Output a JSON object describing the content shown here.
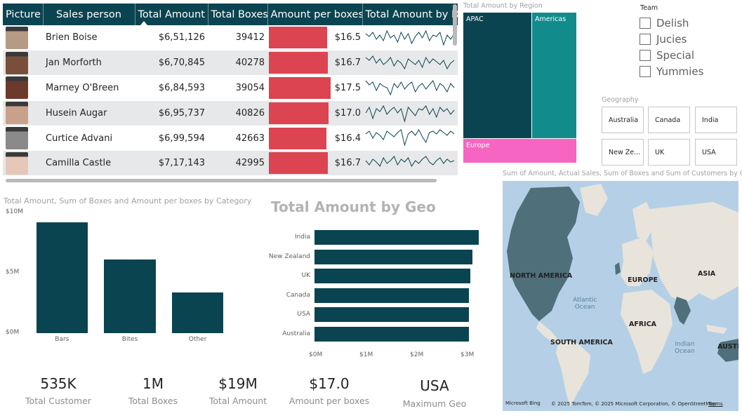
{
  "table": {
    "headers": [
      "Picture",
      "Sales person",
      "Total Amount",
      "Total Boxes",
      "Amount per boxes",
      "Total Amount by Da"
    ],
    "rows": [
      {
        "name": "Brien Boise",
        "amount": "$6,51,126",
        "boxes": "39412",
        "apb": "$16.5",
        "apb_value": 16.5,
        "photo": "#b59a84",
        "spark": [
          22,
          18,
          24,
          14,
          20,
          12,
          26,
          16,
          20,
          10,
          24,
          14,
          22,
          8,
          18,
          24,
          16,
          26,
          12,
          20,
          18,
          24,
          6,
          20,
          14,
          22
        ]
      },
      {
        "name": "Jan Morforth",
        "amount": "$6,70,845",
        "boxes": "40278",
        "apb": "$16.7",
        "apb_value": 16.7,
        "photo": "#7a4f3a",
        "spark": [
          24,
          20,
          26,
          16,
          22,
          14,
          18,
          24,
          12,
          20,
          16,
          8,
          22,
          18,
          14,
          20,
          10,
          24,
          16,
          22,
          18,
          14,
          20,
          8,
          16,
          20
        ]
      },
      {
        "name": "Marney O'Breen",
        "amount": "$6,84,593",
        "boxes": "39054",
        "apb": "$17.5",
        "apb_value": 17.5,
        "photo": "#6b3a2a",
        "spark": [
          26,
          20,
          24,
          12,
          22,
          18,
          16,
          6,
          22,
          16,
          24,
          14,
          20,
          24,
          10,
          18,
          22,
          14,
          20,
          26,
          12,
          22,
          18,
          10,
          22,
          16
        ]
      },
      {
        "name": "Husein Augar",
        "amount": "$6,95,737",
        "boxes": "40826",
        "apb": "$17.0",
        "apb_value": 17.0,
        "photo": "#c9a08a",
        "spark": [
          16,
          24,
          8,
          22,
          18,
          26,
          14,
          20,
          24,
          16,
          22,
          4,
          24,
          18,
          12,
          22,
          20,
          26,
          14,
          22,
          10,
          24,
          18,
          22,
          14,
          20
        ]
      },
      {
        "name": "Curtice Advani",
        "amount": "$6,99,594",
        "boxes": "42663",
        "apb": "$16.4",
        "apb_value": 16.4,
        "photo": "#8a8a8a",
        "spark": [
          22,
          26,
          16,
          24,
          20,
          14,
          26,
          22,
          18,
          24,
          28,
          6,
          22,
          26,
          20,
          28,
          18,
          10,
          24,
          26,
          22,
          28,
          24,
          20,
          26,
          22
        ]
      },
      {
        "name": "Camilla Castle",
        "amount": "$7,17,143",
        "boxes": "42995",
        "apb": "$16.7",
        "apb_value": 16.7,
        "photo": "#e6c7b8",
        "spark": [
          20,
          14,
          22,
          18,
          12,
          24,
          16,
          20,
          26,
          14,
          22,
          18,
          24,
          12,
          20,
          16,
          22,
          26,
          18,
          14,
          20,
          24,
          16,
          22,
          18,
          20
        ]
      }
    ]
  },
  "treemap": {
    "title": "Total Amount by Region",
    "regions": [
      "APAC",
      "Americas",
      "Europe"
    ],
    "colors": {
      "apac": "#0b4451",
      "americas": "#118b8c",
      "europe": "#f665c1"
    }
  },
  "team_slicer": {
    "title": "Team",
    "options": [
      "Delish",
      "Jucies",
      "Special",
      "Yummies"
    ]
  },
  "geo_slicer": {
    "title": "Geography",
    "options": [
      "Australia",
      "Canada",
      "India",
      "New Ze...",
      "UK",
      "USA"
    ]
  },
  "category_chart": {
    "title": "Total Amount, Sum of Boxes and Amount per boxes by Category"
  },
  "geo_chart": {
    "title": "Total Amount by Geo"
  },
  "chart_data": [
    {
      "type": "bar",
      "title": "Total Amount, Sum of Boxes and Amount per boxes by Category",
      "categories": [
        "Bars",
        "Bites",
        "Other"
      ],
      "values": [
        9200000,
        6100000,
        3400000
      ],
      "ylim": [
        0,
        10000000
      ],
      "yticks": [
        "$0M",
        "$5M",
        "$10M"
      ],
      "ytick_values": [
        0,
        5000000,
        10000000
      ],
      "color": "#0b4451"
    },
    {
      "type": "bar",
      "orientation": "horizontal",
      "title": "Total Amount by Geo",
      "categories": [
        "India",
        "New Zealand",
        "UK",
        "Canada",
        "USA",
        "Australia"
      ],
      "values": [
        3250000,
        3130000,
        3080000,
        3060000,
        3060000,
        3050000
      ],
      "xlim": [
        0,
        3300000
      ],
      "xticks": [
        "$0M",
        "$1M",
        "$2M",
        "$3M"
      ],
      "xtick_values": [
        0,
        1000000,
        2000000,
        3000000
      ],
      "color": "#0b4451"
    }
  ],
  "kpis": [
    {
      "value": "535K",
      "label": "Total Customer"
    },
    {
      "value": "1M",
      "label": "Total Boxes"
    },
    {
      "value": "$19M",
      "label": "Total Amount"
    },
    {
      "value": "$17.0",
      "label": "Amount per boxes"
    },
    {
      "value": "USA",
      "label": "Maximum Geo"
    }
  ],
  "map": {
    "title": "Sum of Amount, Actual Sales, Sum of Boxes and Sum of Customers by Geo...",
    "labels": {
      "north_america": "NORTH AMERICA",
      "europe": "EUROPE",
      "asia": "ASIA",
      "africa": "AFRICA",
      "south_america": "SOUTH AMERICA",
      "atlantic_1": "Atlantic",
      "atlantic_2": "Ocean",
      "indian_1": "Indian",
      "indian_2": "Ocean",
      "austr": "AUSTR"
    },
    "logo": "Microsoft Bing",
    "copyright": "© 2025 TomTom, © 2025 Microsoft Corporation, © OpenStreetMap",
    "terms": "Terms",
    "colors": {
      "water": "#b5d0e6",
      "land": "#e8e4dc",
      "highlight": "#4f6f7a"
    }
  }
}
